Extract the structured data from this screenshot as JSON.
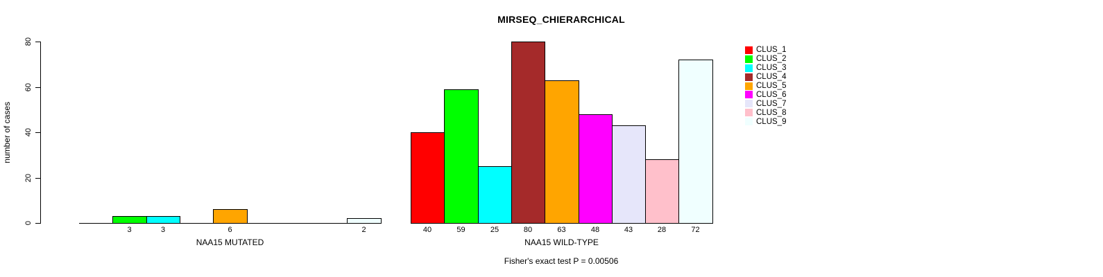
{
  "chart": {
    "title": "MIRSEQ_CHIERARCHICAL",
    "y_axis": {
      "label": "number of cases"
    },
    "footer": "Fisher's exact test P = 0.00506"
  },
  "chart_data": {
    "type": "bar",
    "title": "MIRSEQ_CHIERARCHICAL",
    "xlabel": "",
    "ylabel": "number of cases",
    "ylim": [
      0,
      80
    ],
    "yticks": [
      0,
      20,
      40,
      60,
      80
    ],
    "grid": false,
    "legend_position": "right",
    "series_names": [
      "CLUS_1",
      "CLUS_2",
      "CLUS_3",
      "CLUS_4",
      "CLUS_5",
      "CLUS_6",
      "CLUS_7",
      "CLUS_8",
      "CLUS_9"
    ],
    "series_colors": [
      "#FF0000",
      "#00FF00",
      "#00FFFF",
      "#A52A2A",
      "#FFA500",
      "#FF00FF",
      "#E6E6FA",
      "#FFC0CB",
      "#F0FFFF"
    ],
    "groups": [
      {
        "label": "NAA15 MUTATED",
        "values": [
          0,
          3,
          3,
          0,
          6,
          0,
          0,
          0,
          2
        ]
      },
      {
        "label": "NAA15 WILD-TYPE",
        "values": [
          40,
          59,
          25,
          80,
          63,
          48,
          43,
          28,
          72
        ]
      }
    ],
    "bar_value_labels": [
      [
        "",
        "3",
        "3",
        "",
        "6",
        "",
        "",
        "",
        "2"
      ],
      [
        "40",
        "59",
        "25",
        "80",
        "63",
        "48",
        "43",
        "28",
        "72"
      ]
    ],
    "annotation": "Fisher's exact test P = 0.00506",
    "bar_border_color": "#000000",
    "background_color": "#FFFFFF"
  }
}
